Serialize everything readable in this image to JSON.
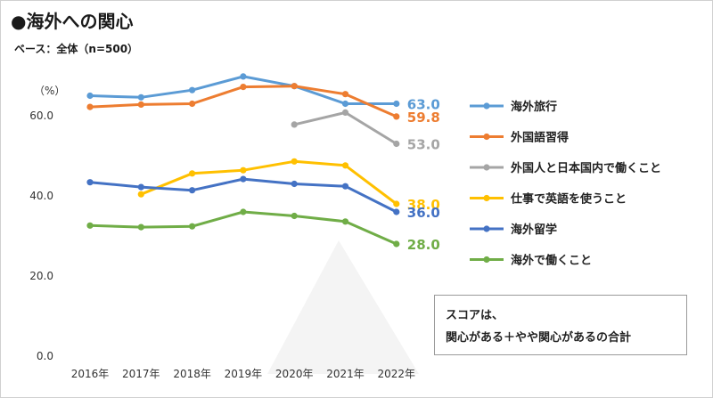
{
  "header": {
    "title": "●海外への関心",
    "subtitle": "ベース：全体（n=500）"
  },
  "note": {
    "line1": "スコアは、",
    "line2": "関心がある＋やや関心があるの合計"
  },
  "chart_data": {
    "type": "line",
    "unit_label": "（%）",
    "categories": [
      "2016年",
      "2017年",
      "2018年",
      "2019年",
      "2020年",
      "2021年",
      "2022年"
    ],
    "ylim": [
      0,
      60
    ],
    "yticks": [
      "0.0",
      "20.0",
      "40.0",
      "60.0"
    ],
    "grid": false,
    "legend_position": "right",
    "series": [
      {
        "name": "海外旅行",
        "color": "#5B9BD5",
        "values": [
          65.0,
          64.6,
          66.4,
          69.8,
          67.4,
          63.0,
          63.0
        ],
        "end_label": "63.0"
      },
      {
        "name": "外国語習得",
        "color": "#ED7D31",
        "values": [
          62.2,
          62.8,
          63.0,
          67.2,
          67.4,
          65.4,
          59.8
        ],
        "end_label": "59.8"
      },
      {
        "name": "外国人と日本国内で働くこと",
        "color": "#A5A5A5",
        "values": [
          null,
          null,
          null,
          null,
          57.8,
          60.8,
          53.0
        ],
        "end_label": "53.0"
      },
      {
        "name": "仕事で英語を使うこと",
        "color": "#FFC000",
        "values": [
          null,
          40.4,
          45.6,
          46.4,
          48.6,
          47.6,
          38.0
        ],
        "end_label": "38.0"
      },
      {
        "name": "海外留学",
        "color": "#4472C4",
        "values": [
          43.4,
          42.2,
          41.4,
          44.2,
          43.0,
          42.4,
          36.0
        ],
        "end_label": "36.0"
      },
      {
        "name": "海外で働くこと",
        "color": "#70AD47",
        "values": [
          32.6,
          32.2,
          32.4,
          36.0,
          35.0,
          33.6,
          28.0
        ],
        "end_label": "28.0"
      }
    ]
  }
}
